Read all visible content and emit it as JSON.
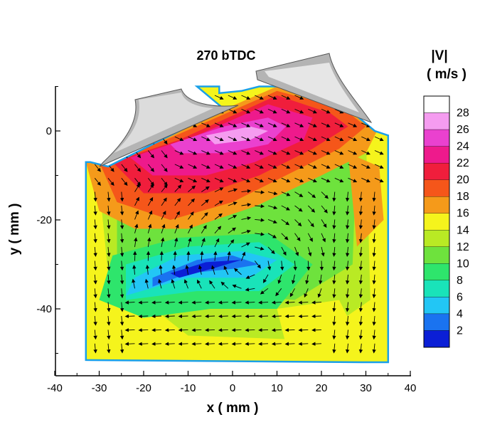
{
  "chart_data": {
    "type": "vector-contour",
    "title": "270 bTDC",
    "xlabel": "x ( mm )",
    "ylabel": "y ( mm )",
    "xlim": [
      -40,
      40
    ],
    "ylim": [
      -55,
      10
    ],
    "x_ticks": [
      -40,
      -30,
      -20,
      -10,
      0,
      10,
      20,
      30,
      40
    ],
    "y_ticks": [
      0,
      -20,
      -40
    ],
    "colorbar": {
      "title_line1": "|V|",
      "title_line2": "( m/s )",
      "levels": [
        2,
        4,
        6,
        8,
        10,
        12,
        14,
        16,
        18,
        20,
        22,
        24,
        26,
        28
      ],
      "colors": [
        "#0b1fd6",
        "#1a73f0",
        "#22c6f5",
        "#19e3b9",
        "#2ee56c",
        "#6ee23d",
        "#b9ea24",
        "#f5f41c",
        "#f59a1a",
        "#f5561a",
        "#f01e3c",
        "#ee1a8c",
        "#ea41cf",
        "#f59cf0"
      ],
      "top_color": "#ffffff"
    },
    "speed_regions": [
      {
        "level": 16,
        "points": [
          [
            -33,
            -7
          ],
          [
            34,
            -2
          ],
          [
            35,
            -45
          ],
          [
            25,
            -50
          ],
          [
            -2,
            -50
          ],
          [
            -33,
            -50
          ]
        ]
      },
      {
        "level": 14,
        "points": [
          [
            -30,
            -12
          ],
          [
            30,
            0
          ],
          [
            31,
            -38
          ],
          [
            18,
            -47
          ],
          [
            -10,
            -46
          ],
          [
            -28,
            -32
          ]
        ]
      },
      {
        "level": 12,
        "points": [
          [
            -26,
            -18
          ],
          [
            28,
            -3
          ],
          [
            27,
            -30
          ],
          [
            14,
            -38
          ],
          [
            -8,
            -36
          ],
          [
            -26,
            -30
          ]
        ]
      },
      {
        "level": 18,
        "points": [
          [
            -33,
            -7
          ],
          [
            -20,
            -3
          ],
          [
            10,
            10
          ],
          [
            25,
            6
          ],
          [
            33,
            1
          ],
          [
            30,
            -5
          ],
          [
            20,
            -10
          ],
          [
            5,
            -17
          ],
          [
            -10,
            -22
          ],
          [
            -22,
            -22
          ],
          [
            -30,
            -18
          ]
        ]
      },
      {
        "level": 20,
        "points": [
          [
            -30,
            -7
          ],
          [
            -15,
            -2
          ],
          [
            10,
            9
          ],
          [
            25,
            5
          ],
          [
            30,
            1
          ],
          [
            24,
            -4
          ],
          [
            12,
            -10
          ],
          [
            0,
            -16
          ],
          [
            -14,
            -20
          ],
          [
            -26,
            -16
          ]
        ]
      },
      {
        "level": 22,
        "points": [
          [
            -27,
            -7
          ],
          [
            -12,
            -2
          ],
          [
            10,
            8
          ],
          [
            22,
            4
          ],
          [
            26,
            1
          ],
          [
            18,
            -4
          ],
          [
            6,
            -10
          ],
          [
            -6,
            -14
          ],
          [
            -20,
            -14
          ]
        ]
      },
      {
        "level": 24,
        "points": [
          [
            -23,
            -6
          ],
          [
            -8,
            -1
          ],
          [
            8,
            6
          ],
          [
            18,
            3
          ],
          [
            16,
            -2
          ],
          [
            5,
            -7
          ],
          [
            -6,
            -10
          ],
          [
            -18,
            -10
          ]
        ]
      },
      {
        "level": 26,
        "points": [
          [
            -14,
            -3
          ],
          [
            -2,
            1
          ],
          [
            8,
            3
          ],
          [
            12,
            1
          ],
          [
            8,
            -3
          ],
          [
            -2,
            -5
          ],
          [
            -12,
            -5
          ]
        ]
      },
      {
        "level": 28,
        "points": [
          [
            -6,
            -1
          ],
          [
            4,
            1
          ],
          [
            8,
            0
          ],
          [
            4,
            -2
          ],
          [
            -4,
            -3
          ]
        ]
      },
      {
        "level": 10,
        "points": [
          [
            -27,
            -28
          ],
          [
            -12,
            -24
          ],
          [
            8,
            -23
          ],
          [
            18,
            -30
          ],
          [
            10,
            -40
          ],
          [
            -5,
            -40
          ],
          [
            -20,
            -42
          ],
          [
            -30,
            -38
          ]
        ]
      },
      {
        "level": 8,
        "points": [
          [
            -24,
            -30
          ],
          [
            -10,
            -26
          ],
          [
            6,
            -25
          ],
          [
            14,
            -30
          ],
          [
            6,
            -36
          ],
          [
            -8,
            -36
          ],
          [
            -24,
            -38
          ]
        ]
      },
      {
        "level": 6,
        "points": [
          [
            -22,
            -33
          ],
          [
            -12,
            -28
          ],
          [
            2,
            -27
          ],
          [
            10,
            -29
          ],
          [
            4,
            -33
          ],
          [
            -10,
            -33
          ],
          [
            -24,
            -37
          ]
        ]
      },
      {
        "level": 4,
        "points": [
          [
            -18,
            -33
          ],
          [
            -8,
            -29
          ],
          [
            0,
            -28
          ],
          [
            6,
            -30
          ],
          [
            0,
            -31
          ],
          [
            -10,
            -32
          ],
          [
            -18,
            -35
          ]
        ]
      },
      {
        "level": 2,
        "points": [
          [
            -14,
            -32
          ],
          [
            -6,
            -29.5
          ],
          [
            2,
            -29
          ],
          [
            -4,
            -30.8
          ],
          [
            -12,
            -33
          ]
        ]
      },
      {
        "level": 16,
        "points": [
          [
            10,
            -40
          ],
          [
            24,
            -38
          ],
          [
            28,
            -46
          ],
          [
            12,
            -48
          ]
        ]
      },
      {
        "level": 18,
        "points": [
          [
            26,
            -5
          ],
          [
            33,
            -8
          ],
          [
            34,
            -20
          ],
          [
            28,
            -26
          ]
        ]
      }
    ]
  }
}
